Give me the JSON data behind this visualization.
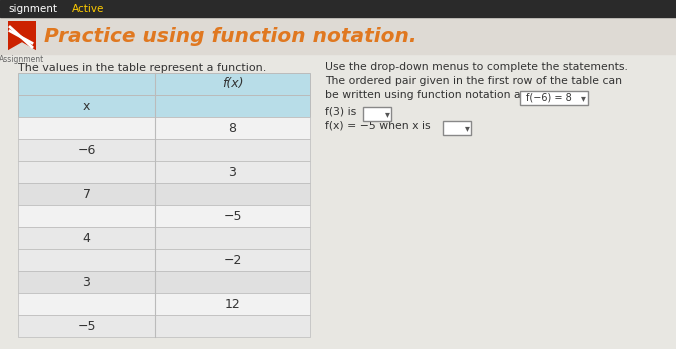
{
  "title": "Practice using function notation.",
  "top_bar_label": "signment",
  "top_bar_active": "Active",
  "bg_color": "#d5d5d5",
  "content_bg": "#e8e8e8",
  "title_area_bg": "#e0ddd8",
  "icon_color": "#cc3300",
  "title_color": "#e07820",
  "left_text": "The values in the table represent a function.",
  "right_text_line1": "Use the drop-down menus to complete the statements.",
  "right_text_line2": "The ordered pair given in the first row of the table can",
  "right_text_line3": "be written using function notation as",
  "right_text_notation": "f(−6) = 8",
  "right_text_f3": "f(3) is",
  "right_text_fx": "f(x) = −5 when x is",
  "table_header_color": "#b8dde8",
  "table_row_light": "#f0f0f0",
  "table_row_dark": "#e4e4e4",
  "table_border": "#bbbbbb",
  "table_x_values": [
    "−6",
    "7",
    "4",
    "3",
    "−5"
  ],
  "table_fx_values": [
    "8",
    "3",
    "−5",
    "−2",
    "12"
  ],
  "col_x_label": "x",
  "col_fx_label": "f(x)"
}
